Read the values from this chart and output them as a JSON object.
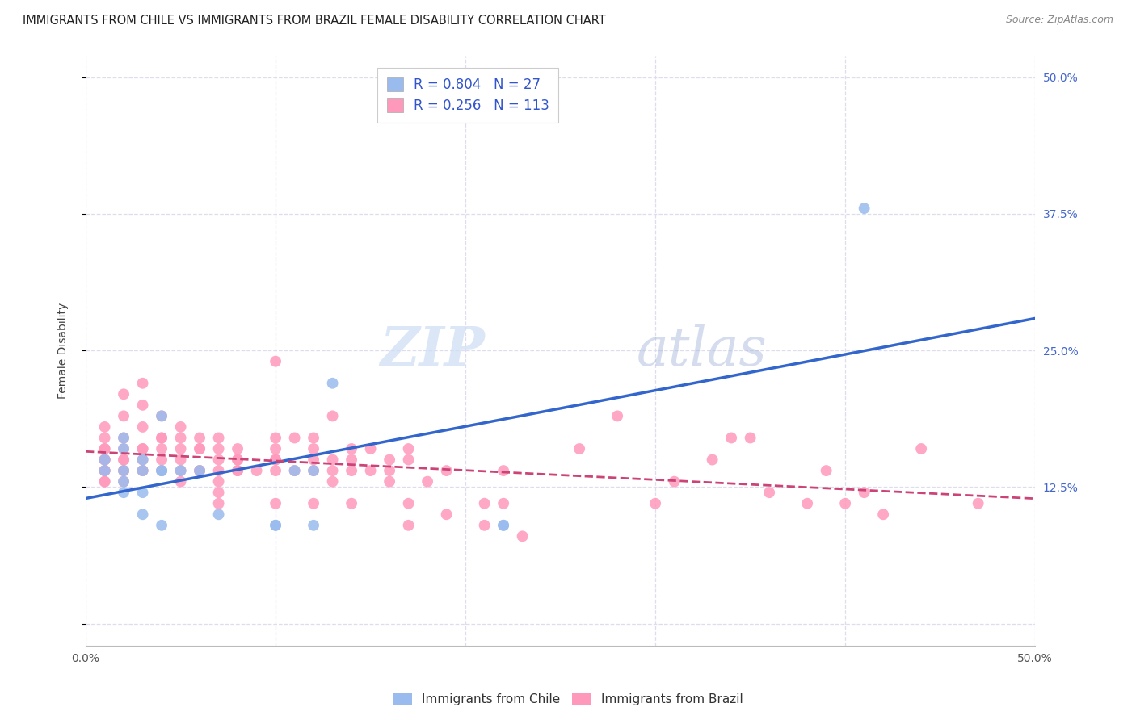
{
  "title": "IMMIGRANTS FROM CHILE VS IMMIGRANTS FROM BRAZIL FEMALE DISABILITY CORRELATION CHART",
  "source": "Source: ZipAtlas.com",
  "ylabel_label": "Female Disability",
  "x_min": 0.0,
  "x_max": 0.5,
  "y_min": -0.02,
  "y_max": 0.52,
  "x_ticks": [
    0.0,
    0.1,
    0.2,
    0.3,
    0.4,
    0.5
  ],
  "x_tick_labels": [
    "0.0%",
    "",
    "",
    "",
    "",
    "50.0%"
  ],
  "y_ticks": [
    0.0,
    0.125,
    0.25,
    0.375,
    0.5
  ],
  "y_tick_labels": [
    "",
    "12.5%",
    "25.0%",
    "37.5%",
    "50.0%"
  ],
  "chile_color": "#99BBEE",
  "brazil_color": "#FF99BB",
  "chile_line_color": "#3366CC",
  "brazil_line_color": "#CC4477",
  "legend_chile_R": "0.804",
  "legend_chile_N": "27",
  "legend_brazil_R": "0.256",
  "legend_brazil_N": "113",
  "watermark": "ZIPatlas",
  "background_color": "#FFFFFF",
  "grid_color": "#DDDDEE",
  "chile_points_x": [
    0.01,
    0.01,
    0.02,
    0.02,
    0.02,
    0.02,
    0.02,
    0.03,
    0.03,
    0.03,
    0.03,
    0.04,
    0.04,
    0.04,
    0.04,
    0.05,
    0.06,
    0.07,
    0.1,
    0.1,
    0.11,
    0.12,
    0.12,
    0.13,
    0.22,
    0.22,
    0.41
  ],
  "chile_points_y": [
    0.15,
    0.14,
    0.14,
    0.16,
    0.17,
    0.13,
    0.12,
    0.12,
    0.14,
    0.15,
    0.1,
    0.09,
    0.14,
    0.14,
    0.19,
    0.14,
    0.14,
    0.1,
    0.09,
    0.09,
    0.14,
    0.09,
    0.14,
    0.22,
    0.09,
    0.09,
    0.38
  ],
  "brazil_points_x": [
    0.01,
    0.01,
    0.01,
    0.01,
    0.01,
    0.01,
    0.01,
    0.01,
    0.01,
    0.01,
    0.01,
    0.01,
    0.02,
    0.02,
    0.02,
    0.02,
    0.02,
    0.02,
    0.02,
    0.02,
    0.02,
    0.03,
    0.03,
    0.03,
    0.03,
    0.03,
    0.03,
    0.03,
    0.03,
    0.04,
    0.04,
    0.04,
    0.04,
    0.04,
    0.04,
    0.05,
    0.05,
    0.05,
    0.05,
    0.05,
    0.05,
    0.06,
    0.06,
    0.06,
    0.06,
    0.06,
    0.07,
    0.07,
    0.07,
    0.07,
    0.07,
    0.07,
    0.07,
    0.08,
    0.08,
    0.08,
    0.08,
    0.08,
    0.09,
    0.1,
    0.1,
    0.1,
    0.1,
    0.1,
    0.1,
    0.1,
    0.11,
    0.11,
    0.12,
    0.12,
    0.12,
    0.12,
    0.12,
    0.13,
    0.13,
    0.13,
    0.13,
    0.14,
    0.14,
    0.14,
    0.14,
    0.15,
    0.15,
    0.16,
    0.16,
    0.16,
    0.17,
    0.17,
    0.17,
    0.17,
    0.18,
    0.19,
    0.19,
    0.21,
    0.21,
    0.22,
    0.22,
    0.23,
    0.26,
    0.28,
    0.3,
    0.31,
    0.33,
    0.34,
    0.35,
    0.36,
    0.38,
    0.39,
    0.4,
    0.41,
    0.42,
    0.44,
    0.47
  ],
  "brazil_points_y": [
    0.14,
    0.15,
    0.13,
    0.15,
    0.16,
    0.14,
    0.15,
    0.16,
    0.14,
    0.13,
    0.17,
    0.18,
    0.14,
    0.15,
    0.13,
    0.17,
    0.19,
    0.16,
    0.21,
    0.14,
    0.15,
    0.14,
    0.15,
    0.14,
    0.16,
    0.18,
    0.2,
    0.22,
    0.16,
    0.14,
    0.15,
    0.16,
    0.17,
    0.17,
    0.19,
    0.14,
    0.16,
    0.15,
    0.17,
    0.13,
    0.18,
    0.14,
    0.14,
    0.16,
    0.17,
    0.16,
    0.14,
    0.15,
    0.12,
    0.16,
    0.17,
    0.11,
    0.13,
    0.14,
    0.15,
    0.14,
    0.16,
    0.15,
    0.14,
    0.15,
    0.14,
    0.17,
    0.16,
    0.24,
    0.15,
    0.11,
    0.14,
    0.17,
    0.14,
    0.17,
    0.15,
    0.11,
    0.16,
    0.14,
    0.15,
    0.13,
    0.19,
    0.14,
    0.16,
    0.15,
    0.11,
    0.14,
    0.16,
    0.14,
    0.15,
    0.13,
    0.15,
    0.16,
    0.09,
    0.11,
    0.13,
    0.14,
    0.1,
    0.09,
    0.11,
    0.14,
    0.11,
    0.08,
    0.16,
    0.19,
    0.11,
    0.13,
    0.15,
    0.17,
    0.17,
    0.12,
    0.11,
    0.14,
    0.11,
    0.12,
    0.1,
    0.16,
    0.11
  ]
}
